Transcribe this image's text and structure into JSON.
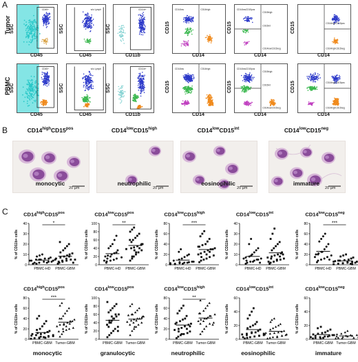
{
  "panel_labels": {
    "a": "A",
    "b": "B",
    "c": "C"
  },
  "row_labels": {
    "tumor": "Tumor",
    "pbmc": "PBMC"
  },
  "flow": {
    "tumor": [
      {
        "y": "SSC",
        "x": "CD45",
        "gates": [
          "CD45+"
        ]
      },
      {
        "y": "SSC",
        "x": "CD45",
        "gates": [
          "w/o Lymph"
        ]
      },
      {
        "y": "SSC",
        "x": "CD11b",
        "gates": [
          "CD11b+"
        ]
      },
      {
        "y": "CD15",
        "x": "CD14",
        "gates": [
          "CD14low",
          "CD14high"
        ]
      },
      {
        "y": "CD15",
        "x": "CD14",
        "gates": [
          "CD14lowCD15pos",
          "CD15high",
          "CD15int",
          "CD14lowCD15neg"
        ]
      },
      {
        "y": "CD15",
        "x": "CD14",
        "gates": [
          "CD14highCD15pos",
          "CD14highCD15neg"
        ]
      }
    ],
    "pbmc": [
      {
        "y": "SSC",
        "x": "CD45",
        "gates": [
          "CD45+"
        ]
      },
      {
        "y": "SSC",
        "x": "CD45",
        "gates": [
          "w/o Lymph"
        ]
      },
      {
        "y": "SSC",
        "x": "CD11b",
        "gates": [
          "CD11b+"
        ]
      },
      {
        "y": "CD15",
        "x": "CD14",
        "gates": [
          "CD14low",
          "CD14high"
        ]
      },
      {
        "y": "CD15",
        "x": "CD14",
        "gates": [
          "CD14lowCD15pos",
          "CD15high",
          "CD15int",
          "CD14lowCD15neg"
        ]
      },
      {
        "y": "CD15",
        "x": "CD14",
        "gates": [
          "CD14highCD15pos",
          "CD14highCD15neg"
        ]
      }
    ]
  },
  "micro": [
    {
      "title_main": "CD14",
      "sup1": "high",
      "mid": "CD15",
      "sup2": "pos",
      "caption": "monocytic",
      "scale": "20 µm"
    },
    {
      "title_main": "CD14",
      "sup1": "low",
      "mid": "CD15",
      "sup2": "high",
      "caption": "neutrophilic",
      "scale": "20 µm"
    },
    {
      "title_main": "CD14",
      "sup1": "low",
      "mid": "CD15",
      "sup2": "int",
      "caption": "eosinophilic",
      "scale": "20 µm"
    },
    {
      "title_main": "CD14",
      "sup1": "low",
      "mid": "CD15",
      "sup2": "neg",
      "caption": "immature",
      "scale": "20 µm"
    }
  ],
  "chart_data": [
    {
      "type": "scatter",
      "title": "CD14highCD15pos",
      "ylabel": "% of CD11b+ cells",
      "ylim": [
        0,
        40
      ],
      "yticks": [
        0,
        10,
        20,
        30,
        40
      ],
      "categories": [
        "PBMC-HD",
        "PBMC-GBM"
      ],
      "sig": "*",
      "markers": [
        "circle",
        "square"
      ],
      "values": [
        [
          1,
          2,
          2,
          3,
          3,
          4,
          4,
          5,
          5,
          6,
          6,
          7,
          8,
          9,
          10,
          2,
          3,
          4,
          1,
          5
        ],
        [
          1,
          2,
          3,
          4,
          5,
          5,
          6,
          7,
          8,
          9,
          10,
          11,
          12,
          14,
          16,
          18,
          20,
          22,
          3,
          4,
          6,
          8,
          2,
          5
        ]
      ],
      "caption": ""
    },
    {
      "type": "scatter",
      "title": "CD14lowCD15pos",
      "ylabel": "% of CD11b+ cells",
      "ylim": [
        0,
        100
      ],
      "yticks": [
        0,
        20,
        40,
        60,
        80,
        100
      ],
      "categories": [
        "PBMC-HD",
        "PBMC-GBM"
      ],
      "sig": "**",
      "markers": [
        "circle",
        "square"
      ],
      "values": [
        [
          5,
          8,
          10,
          12,
          15,
          18,
          20,
          22,
          25,
          28,
          30,
          35,
          40,
          45,
          50,
          60,
          70,
          10,
          15,
          20
        ],
        [
          10,
          15,
          20,
          25,
          30,
          35,
          38,
          40,
          42,
          45,
          48,
          50,
          55,
          60,
          65,
          70,
          75,
          80,
          85,
          90,
          30,
          40,
          50,
          60,
          20,
          35,
          45
        ]
      ],
      "caption": ""
    },
    {
      "type": "scatter",
      "title": "CD14lowCD15high",
      "ylabel": "% of CD11b+ cells",
      "ylim": [
        0,
        80
      ],
      "yticks": [
        0,
        20,
        40,
        60,
        80
      ],
      "categories": [
        "PBMC-HD",
        "PBMC-GBM"
      ],
      "sig": "***",
      "markers": [
        "circle",
        "square"
      ],
      "values": [
        [
          1,
          2,
          3,
          4,
          5,
          6,
          8,
          10,
          12,
          15,
          18,
          20,
          25,
          30,
          2,
          4,
          6,
          3,
          1,
          5
        ],
        [
          5,
          8,
          10,
          12,
          15,
          18,
          20,
          22,
          25,
          28,
          30,
          32,
          35,
          38,
          40,
          45,
          50,
          55,
          60,
          65,
          20,
          25,
          30,
          35,
          15
        ]
      ],
      "caption": ""
    },
    {
      "type": "scatter",
      "title": "CD14lowCD15int",
      "ylabel": "% of CD11b+ cells",
      "ylim": [
        0,
        40
      ],
      "yticks": [
        0,
        10,
        20,
        30,
        40
      ],
      "categories": [
        "PBMC-HD",
        "PBMC-GBM"
      ],
      "sig": "",
      "markers": [
        "circle",
        "square"
      ],
      "values": [
        [
          1,
          2,
          3,
          4,
          5,
          6,
          7,
          8,
          10,
          12,
          14,
          16,
          20,
          25,
          3,
          5,
          2,
          6,
          4,
          9
        ],
        [
          1,
          2,
          3,
          4,
          5,
          6,
          7,
          8,
          9,
          10,
          11,
          12,
          14,
          16,
          18,
          20,
          22,
          25,
          30,
          35,
          5,
          8,
          10,
          3,
          6
        ]
      ],
      "caption": ""
    },
    {
      "type": "scatter",
      "title": "CD14lowCD15neg",
      "ylabel": "% of CD11b+ cells",
      "ylim": [
        0,
        80
      ],
      "yticks": [
        0,
        20,
        40,
        60,
        80
      ],
      "categories": [
        "PBMC-HD",
        "PBMC-GBM"
      ],
      "sig": "***",
      "markers": [
        "circle",
        "square"
      ],
      "values": [
        [
          5,
          8,
          10,
          12,
          15,
          18,
          20,
          22,
          25,
          30,
          35,
          40,
          45,
          50,
          55,
          60,
          10,
          15,
          20,
          25
        ],
        [
          1,
          2,
          3,
          4,
          5,
          6,
          7,
          8,
          9,
          10,
          12,
          14,
          16,
          18,
          20,
          2,
          4,
          6,
          8,
          3,
          5,
          1
        ]
      ],
      "caption": ""
    },
    {
      "type": "scatter",
      "title": "CD14highCD15pos",
      "ylabel": "% of CD11b+ cells",
      "ylim": [
        0,
        80
      ],
      "yticks": [
        0,
        20,
        40,
        60,
        80
      ],
      "categories": [
        "PBMC-GBM",
        "Tumor-GBM"
      ],
      "sig": "***",
      "markers": [
        "square",
        "triangle"
      ],
      "values": [
        [
          1,
          2,
          3,
          4,
          5,
          6,
          7,
          8,
          10,
          12,
          14,
          16,
          18,
          20,
          25,
          30,
          35,
          40,
          45,
          2,
          4,
          6,
          8,
          10,
          12,
          5,
          3
        ],
        [
          5,
          10,
          15,
          18,
          20,
          22,
          25,
          28,
          30,
          32,
          35,
          38,
          40,
          45,
          50,
          55,
          60,
          65,
          70,
          20,
          25,
          30,
          35,
          15,
          40,
          28
        ]
      ],
      "caption": "monocytic"
    },
    {
      "type": "scatter",
      "title": "CD14lowCD15pos",
      "ylabel": "% of CD11b+ cells",
      "ylim": [
        0,
        100
      ],
      "yticks": [
        0,
        20,
        40,
        60,
        80,
        100
      ],
      "categories": [
        "PBMC-GBM",
        "Tumor-GBM"
      ],
      "sig": "",
      "markers": [
        "square",
        "triangle"
      ],
      "values": [
        [
          5,
          10,
          15,
          20,
          25,
          30,
          35,
          40,
          45,
          50,
          55,
          60,
          65,
          70,
          75,
          80,
          85,
          90,
          30,
          40,
          50,
          60,
          20,
          35,
          45,
          55
        ],
        [
          10,
          20,
          25,
          30,
          35,
          40,
          42,
          45,
          48,
          50,
          52,
          55,
          58,
          60,
          65,
          70,
          75,
          80,
          85,
          40,
          45,
          50,
          55,
          35,
          60,
          30
        ]
      ],
      "caption": "granulocytic"
    },
    {
      "type": "scatter",
      "title": "CD14lowCD15high",
      "ylabel": "% of CD11b+ cells",
      "ylim": [
        0,
        80
      ],
      "yticks": [
        0,
        20,
        40,
        60,
        80
      ],
      "categories": [
        "PBMC-GBM",
        "Tumor-GBM"
      ],
      "sig": "**",
      "markers": [
        "square",
        "triangle"
      ],
      "values": [
        [
          2,
          5,
          8,
          10,
          12,
          15,
          18,
          20,
          22,
          25,
          28,
          30,
          32,
          35,
          38,
          40,
          45,
          50,
          55,
          60,
          65,
          20,
          25,
          30,
          15,
          10
        ],
        [
          10,
          15,
          20,
          25,
          30,
          32,
          35,
          38,
          40,
          42,
          45,
          48,
          50,
          55,
          60,
          65,
          70,
          75,
          30,
          35,
          40,
          45,
          28,
          50
        ]
      ],
      "caption": "neutrophilic"
    },
    {
      "type": "scatter",
      "title": "CD14lowCD15int",
      "ylabel": "% of CD11b+ cells",
      "ylim": [
        0,
        60
      ],
      "yticks": [
        0,
        20,
        40,
        60
      ],
      "categories": [
        "PBMC-GBM",
        "Tumor-GBM"
      ],
      "sig": "",
      "markers": [
        "square",
        "triangle"
      ],
      "values": [
        [
          1,
          2,
          3,
          4,
          5,
          6,
          7,
          8,
          9,
          10,
          12,
          14,
          16,
          18,
          20,
          22,
          25,
          30,
          35,
          40,
          45,
          5,
          8,
          3,
          6,
          10
        ],
        [
          1,
          2,
          3,
          4,
          5,
          6,
          7,
          8,
          9,
          10,
          11,
          12,
          14,
          16,
          18,
          20,
          22,
          25,
          28,
          30,
          3,
          5,
          7,
          9
        ]
      ],
      "caption": "eosinophilic"
    },
    {
      "type": "scatter",
      "title": "CD14lowCD15neg",
      "ylabel": "% of CD11b+ cells",
      "ylim": [
        0,
        60
      ],
      "yticks": [
        0,
        20,
        40,
        60
      ],
      "categories": [
        "PBMC-GBM",
        "Tumor-GBM"
      ],
      "sig": "",
      "markers": [
        "square",
        "triangle"
      ],
      "values": [
        [
          1,
          2,
          3,
          4,
          5,
          6,
          7,
          8,
          9,
          10,
          12,
          14,
          16,
          18,
          2,
          4,
          6,
          3,
          5,
          1
        ],
        [
          1,
          2,
          3,
          4,
          5,
          6,
          7,
          8,
          10,
          12,
          2,
          3,
          4,
          1,
          5,
          6
        ]
      ],
      "caption": "immature"
    }
  ]
}
